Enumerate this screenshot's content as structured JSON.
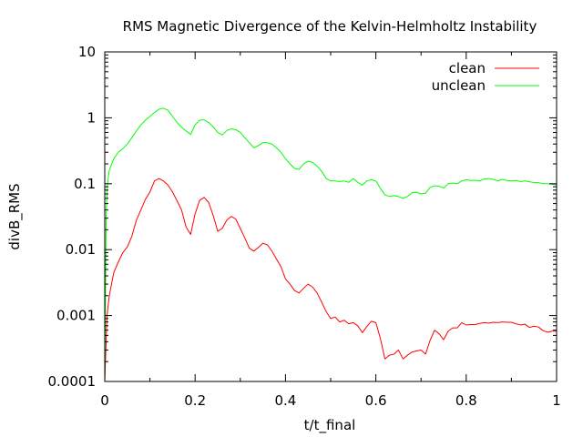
{
  "chart_data": {
    "type": "line",
    "title": "RMS Magnetic Divergence of the Kelvin-Helmholtz Instability",
    "xlabel": "t/t_final",
    "ylabel": "divB_RMS",
    "xlim": [
      0,
      1
    ],
    "ylim": [
      0.0001,
      10
    ],
    "yscale": "log",
    "grid": false,
    "legend_position": "top-right",
    "x_ticks": [
      {
        "value": 0,
        "label": "0"
      },
      {
        "value": 0.2,
        "label": "0.2"
      },
      {
        "value": 0.4,
        "label": "0.4"
      },
      {
        "value": 0.6,
        "label": "0.6"
      },
      {
        "value": 0.8,
        "label": "0.8"
      },
      {
        "value": 1,
        "label": "1"
      }
    ],
    "y_ticks": [
      {
        "value": 0.0001,
        "label": "0.0001"
      },
      {
        "value": 0.001,
        "label": "0.001"
      },
      {
        "value": 0.01,
        "label": "0.01"
      },
      {
        "value": 0.1,
        "label": "0.1"
      },
      {
        "value": 1,
        "label": "1"
      },
      {
        "value": 10,
        "label": "10"
      }
    ],
    "series": [
      {
        "name": "clean",
        "color": "#ff0000",
        "points": [
          [
            0.0,
            0.0001
          ],
          [
            0.005,
            0.001
          ],
          [
            0.01,
            0.002
          ],
          [
            0.02,
            0.0045
          ],
          [
            0.03,
            0.0065
          ],
          [
            0.04,
            0.009
          ],
          [
            0.05,
            0.011
          ],
          [
            0.06,
            0.016
          ],
          [
            0.07,
            0.028
          ],
          [
            0.08,
            0.04
          ],
          [
            0.09,
            0.058
          ],
          [
            0.1,
            0.075
          ],
          [
            0.11,
            0.11
          ],
          [
            0.12,
            0.12
          ],
          [
            0.13,
            0.11
          ],
          [
            0.14,
            0.095
          ],
          [
            0.15,
            0.075
          ],
          [
            0.16,
            0.055
          ],
          [
            0.17,
            0.04
          ],
          [
            0.18,
            0.022
          ],
          [
            0.19,
            0.017
          ],
          [
            0.2,
            0.035
          ],
          [
            0.21,
            0.056
          ],
          [
            0.22,
            0.062
          ],
          [
            0.23,
            0.052
          ],
          [
            0.24,
            0.033
          ],
          [
            0.25,
            0.019
          ],
          [
            0.26,
            0.021
          ],
          [
            0.27,
            0.028
          ],
          [
            0.28,
            0.032
          ],
          [
            0.29,
            0.029
          ],
          [
            0.3,
            0.021
          ],
          [
            0.31,
            0.015
          ],
          [
            0.32,
            0.0105
          ],
          [
            0.33,
            0.0095
          ],
          [
            0.34,
            0.0108
          ],
          [
            0.35,
            0.0125
          ],
          [
            0.36,
            0.0118
          ],
          [
            0.37,
            0.0095
          ],
          [
            0.38,
            0.0072
          ],
          [
            0.39,
            0.0055
          ],
          [
            0.4,
            0.0036
          ],
          [
            0.41,
            0.003
          ],
          [
            0.42,
            0.0024
          ],
          [
            0.43,
            0.0022
          ],
          [
            0.44,
            0.0026
          ],
          [
            0.45,
            0.003
          ],
          [
            0.46,
            0.0027
          ],
          [
            0.47,
            0.0022
          ],
          [
            0.48,
            0.0016
          ],
          [
            0.49,
            0.00115
          ],
          [
            0.5,
            0.0009
          ],
          [
            0.51,
            0.00095
          ],
          [
            0.52,
            0.0008
          ],
          [
            0.53,
            0.00085
          ],
          [
            0.54,
            0.00075
          ],
          [
            0.55,
            0.00078
          ],
          [
            0.56,
            0.0007
          ],
          [
            0.57,
            0.00055
          ],
          [
            0.58,
            0.00068
          ],
          [
            0.59,
            0.00082
          ],
          [
            0.6,
            0.00078
          ],
          [
            0.61,
            0.00045
          ],
          [
            0.62,
            0.00022
          ],
          [
            0.63,
            0.00025
          ],
          [
            0.64,
            0.00026
          ],
          [
            0.65,
            0.0003
          ],
          [
            0.66,
            0.00022
          ],
          [
            0.67,
            0.00025
          ],
          [
            0.68,
            0.00028
          ],
          [
            0.69,
            0.00029
          ],
          [
            0.7,
            0.0003
          ],
          [
            0.71,
            0.00026
          ],
          [
            0.72,
            0.00042
          ],
          [
            0.73,
            0.0006
          ],
          [
            0.74,
            0.00053
          ],
          [
            0.75,
            0.00043
          ],
          [
            0.76,
            0.00058
          ],
          [
            0.77,
            0.00065
          ],
          [
            0.78,
            0.00065
          ],
          [
            0.79,
            0.00078
          ],
          [
            0.8,
            0.00072
          ],
          [
            0.81,
            0.00073
          ],
          [
            0.82,
            0.00073
          ],
          [
            0.83,
            0.00076
          ],
          [
            0.84,
            0.00078
          ],
          [
            0.85,
            0.00077
          ],
          [
            0.86,
            0.00079
          ],
          [
            0.87,
            0.00078
          ],
          [
            0.88,
            0.0008
          ],
          [
            0.89,
            0.00079
          ],
          [
            0.9,
            0.00079
          ],
          [
            0.91,
            0.00075
          ],
          [
            0.92,
            0.00072
          ],
          [
            0.93,
            0.00074
          ],
          [
            0.94,
            0.00066
          ],
          [
            0.95,
            0.00069
          ],
          [
            0.96,
            0.00067
          ],
          [
            0.97,
            0.00059
          ],
          [
            0.98,
            0.00056
          ],
          [
            0.99,
            0.00058
          ],
          [
            1.0,
            0.00058
          ]
        ]
      },
      {
        "name": "unclean",
        "color": "#00ff00",
        "points": [
          [
            0.0,
            0.0001
          ],
          [
            0.003,
            0.03
          ],
          [
            0.006,
            0.1
          ],
          [
            0.01,
            0.16
          ],
          [
            0.02,
            0.24
          ],
          [
            0.03,
            0.3
          ],
          [
            0.04,
            0.34
          ],
          [
            0.05,
            0.4
          ],
          [
            0.06,
            0.5
          ],
          [
            0.07,
            0.63
          ],
          [
            0.08,
            0.78
          ],
          [
            0.09,
            0.92
          ],
          [
            0.1,
            1.05
          ],
          [
            0.11,
            1.2
          ],
          [
            0.12,
            1.35
          ],
          [
            0.13,
            1.4
          ],
          [
            0.14,
            1.3
          ],
          [
            0.15,
            1.05
          ],
          [
            0.16,
            0.85
          ],
          [
            0.17,
            0.72
          ],
          [
            0.18,
            0.63
          ],
          [
            0.19,
            0.56
          ],
          [
            0.2,
            0.78
          ],
          [
            0.21,
            0.92
          ],
          [
            0.22,
            0.93
          ],
          [
            0.23,
            0.85
          ],
          [
            0.24,
            0.73
          ],
          [
            0.25,
            0.6
          ],
          [
            0.26,
            0.55
          ],
          [
            0.27,
            0.64
          ],
          [
            0.28,
            0.68
          ],
          [
            0.29,
            0.66
          ],
          [
            0.3,
            0.6
          ],
          [
            0.31,
            0.5
          ],
          [
            0.32,
            0.42
          ],
          [
            0.33,
            0.35
          ],
          [
            0.34,
            0.38
          ],
          [
            0.35,
            0.42
          ],
          [
            0.36,
            0.42
          ],
          [
            0.37,
            0.4
          ],
          [
            0.38,
            0.35
          ],
          [
            0.39,
            0.3
          ],
          [
            0.4,
            0.24
          ],
          [
            0.41,
            0.2
          ],
          [
            0.42,
            0.17
          ],
          [
            0.43,
            0.165
          ],
          [
            0.44,
            0.2
          ],
          [
            0.45,
            0.22
          ],
          [
            0.46,
            0.21
          ],
          [
            0.47,
            0.185
          ],
          [
            0.48,
            0.155
          ],
          [
            0.49,
            0.12
          ],
          [
            0.5,
            0.11
          ],
          [
            0.51,
            0.11
          ],
          [
            0.52,
            0.108
          ],
          [
            0.53,
            0.11
          ],
          [
            0.54,
            0.105
          ],
          [
            0.55,
            0.12
          ],
          [
            0.56,
            0.105
          ],
          [
            0.57,
            0.095
          ],
          [
            0.58,
            0.11
          ],
          [
            0.59,
            0.115
          ],
          [
            0.6,
            0.11
          ],
          [
            0.61,
            0.085
          ],
          [
            0.62,
            0.068
          ],
          [
            0.63,
            0.064
          ],
          [
            0.64,
            0.066
          ],
          [
            0.65,
            0.064
          ],
          [
            0.66,
            0.06
          ],
          [
            0.67,
            0.064
          ],
          [
            0.68,
            0.073
          ],
          [
            0.69,
            0.074
          ],
          [
            0.7,
            0.07
          ],
          [
            0.71,
            0.072
          ],
          [
            0.72,
            0.088
          ],
          [
            0.73,
            0.093
          ],
          [
            0.74,
            0.092
          ],
          [
            0.75,
            0.086
          ],
          [
            0.76,
            0.1
          ],
          [
            0.77,
            0.102
          ],
          [
            0.78,
            0.1
          ],
          [
            0.79,
            0.11
          ],
          [
            0.8,
            0.115
          ],
          [
            0.81,
            0.112
          ],
          [
            0.82,
            0.113
          ],
          [
            0.83,
            0.11
          ],
          [
            0.84,
            0.118
          ],
          [
            0.85,
            0.12
          ],
          [
            0.86,
            0.116
          ],
          [
            0.87,
            0.111
          ],
          [
            0.88,
            0.116
          ],
          [
            0.89,
            0.112
          ],
          [
            0.9,
            0.11
          ],
          [
            0.91,
            0.112
          ],
          [
            0.92,
            0.108
          ],
          [
            0.93,
            0.11
          ],
          [
            0.94,
            0.107
          ],
          [
            0.95,
            0.104
          ],
          [
            0.96,
            0.104
          ],
          [
            0.97,
            0.1
          ],
          [
            0.98,
            0.1
          ],
          [
            0.99,
            0.098
          ],
          [
            1.0,
            0.096
          ]
        ]
      }
    ]
  }
}
